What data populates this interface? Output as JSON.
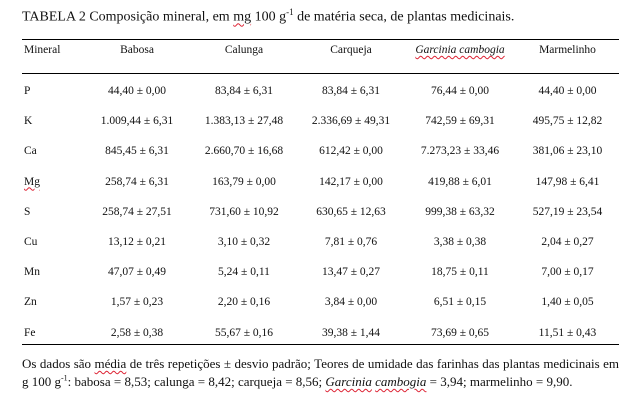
{
  "caption": {
    "prefix": "TABELA 2 Composição mineral, em ",
    "unit_mg": "mg",
    "unit_rest": " 100 g",
    "exponent": "-1",
    "suffix": " de matéria seca, de plantas medicinais."
  },
  "table": {
    "headers": [
      "Mineral",
      "Babosa",
      "Calunga",
      "Carqueja",
      "Garcinia cambogia",
      "Marmelinho"
    ],
    "rows": [
      {
        "mineral": "P",
        "values": [
          "44,40 ± 0,00",
          "83,84 ± 6,31",
          "83,84 ± 6,31",
          "76,44 ± 0,00",
          "44,40 ± 0,00"
        ]
      },
      {
        "mineral": "K",
        "values": [
          "1.009,44 ± 6,31",
          "1.383,13 ± 27,48",
          "2.336,69 ± 49,31",
          "742,59 ± 69,31",
          "495,75 ± 12,82"
        ]
      },
      {
        "mineral": "Ca",
        "values": [
          "845,45 ± 6,31",
          "2.660,70 ± 16,68",
          "612,42 ± 0,00",
          "7.273,23 ± 33,46",
          "381,06 ± 23,10"
        ]
      },
      {
        "mineral": "Mg",
        "values": [
          "258,74 ± 6,31",
          "163,79 ± 0,00",
          "142,17 ± 0,00",
          "419,88 ± 6,01",
          "147,98 ± 6,41"
        ]
      },
      {
        "mineral": "S",
        "values": [
          "258,74 ± 27,51",
          "731,60 ± 10,92",
          "630,65 ± 12,63",
          "999,38 ± 63,32",
          "527,19 ± 23,54"
        ]
      },
      {
        "mineral": "Cu",
        "values": [
          "13,12 ± 0,21",
          "3,10 ± 0,32",
          "7,81 ± 0,76",
          "3,38 ± 0,38",
          "2,04 ± 0,27"
        ]
      },
      {
        "mineral": "Mn",
        "values": [
          "47,07 ± 0,49",
          "5,24 ± 0,11",
          "13,47 ± 0,27",
          "18,75 ± 0,11",
          "7,00 ± 0,17"
        ]
      },
      {
        "mineral": "Zn",
        "values": [
          "1,57 ± 0,23",
          "2,20 ± 0,16",
          "3,84 ± 0,00",
          "6,51 ± 0,15",
          "1,40 ± 0,05"
        ]
      },
      {
        "mineral": "Fe",
        "values": [
          "2,58 ± 0,38",
          "55,67 ± 0,16",
          "39,38 ± 1,44",
          "73,69 ± 0,65",
          "11,51 ± 0,43"
        ]
      }
    ]
  },
  "note": {
    "part1": "Os dados são ",
    "media": "média",
    "part2": " de três repetições ± desvio padrão; Teores de umidade das farinhas das plantas medicinais em g 100 g",
    "exponent": "-1",
    "part3": ": babosa = 8,53; calunga = 8,42; carqueja = 8,56; ",
    "garcinia": "Garcinia",
    "cambogia": "cambogia",
    "part4": " = 3,94; marmelinho = 9,90."
  }
}
